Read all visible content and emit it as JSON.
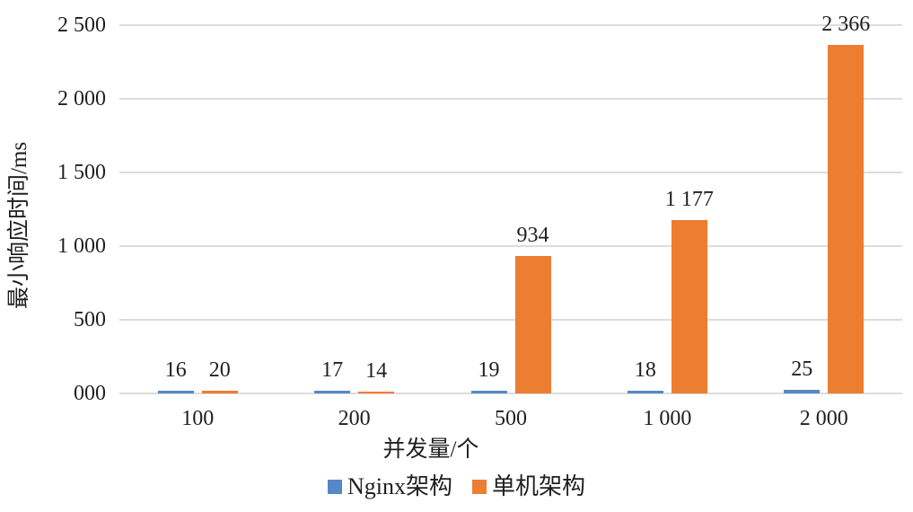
{
  "chart_data": {
    "type": "bar",
    "title": "",
    "xlabel": "并发量/个",
    "ylabel": "最小响应时间/ms",
    "ylim": [
      0,
      2500
    ],
    "grid": true,
    "legend_position": "bottom",
    "categories": [
      "100",
      "200",
      "500",
      "1 000",
      "2 000"
    ],
    "yticks": [
      {
        "value": 0,
        "label": "000"
      },
      {
        "value": 500,
        "label": "500"
      },
      {
        "value": 1000,
        "label": "1 000"
      },
      {
        "value": 1500,
        "label": "1 500"
      },
      {
        "value": 2000,
        "label": "2 000"
      },
      {
        "value": 2500,
        "label": "2 500"
      }
    ],
    "series": [
      {
        "name": "Nginx架构",
        "color": "#5589c6",
        "values": [
          16,
          17,
          19,
          18,
          25
        ],
        "labels": [
          "16",
          "17",
          "19",
          "18",
          "25"
        ]
      },
      {
        "name": "单机架构",
        "color": "#ed7d31",
        "values": [
          20,
          14,
          934,
          1177,
          2366
        ],
        "labels": [
          "20",
          "14",
          "934",
          "1 177",
          "2 366"
        ]
      }
    ],
    "colors": {
      "gridline": "#dcdcdc",
      "text": "#1f1f1f",
      "background": "#ffffff"
    }
  }
}
